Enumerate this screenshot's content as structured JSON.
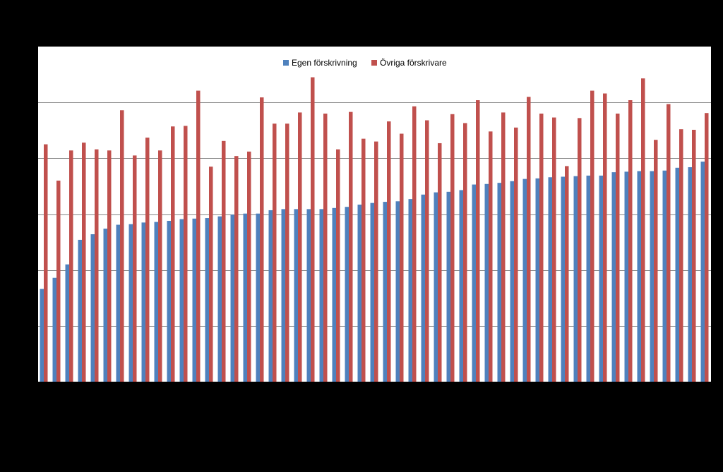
{
  "chart_data": {
    "type": "bar",
    "title": "",
    "xlabel": "",
    "ylabel": "",
    "ylim": [
      0,
      6
    ],
    "y_gridlines": [
      1,
      2,
      3,
      4,
      5
    ],
    "legend_position": "top-center",
    "colors": {
      "background": "#000000",
      "plot_area": "#ffffff",
      "gridline": "#868686",
      "axis": "#000000"
    },
    "series": [
      {
        "name": "Egen förskrivning",
        "color": "#4f81bd",
        "values": [
          1.66,
          1.86,
          2.1,
          2.54,
          2.64,
          2.74,
          2.81,
          2.82,
          2.85,
          2.86,
          2.88,
          2.91,
          2.92,
          2.93,
          2.96,
          2.99,
          3.01,
          3.01,
          3.07,
          3.09,
          3.09,
          3.09,
          3.09,
          3.11,
          3.13,
          3.17,
          3.2,
          3.22,
          3.23,
          3.27,
          3.35,
          3.39,
          3.4,
          3.43,
          3.53,
          3.54,
          3.56,
          3.59,
          3.63,
          3.64,
          3.66,
          3.67,
          3.68,
          3.69,
          3.69,
          3.75,
          3.76,
          3.77,
          3.77,
          3.78,
          3.83,
          3.84,
          3.94
        ]
      },
      {
        "name": "Övriga förskrivare",
        "color": "#c0504d",
        "values": [
          4.25,
          3.6,
          4.14,
          4.28,
          4.16,
          4.14,
          4.86,
          4.05,
          4.37,
          4.14,
          4.57,
          4.58,
          5.21,
          3.85,
          4.31,
          4.04,
          4.12,
          5.09,
          4.62,
          4.62,
          4.82,
          5.45,
          4.8,
          4.16,
          4.83,
          4.35,
          4.3,
          4.66,
          4.44,
          4.93,
          4.68,
          4.27,
          4.79,
          4.63,
          5.04,
          4.48,
          4.82,
          4.55,
          5.1,
          4.8,
          4.73,
          3.86,
          4.72,
          5.21,
          5.16,
          4.8,
          5.04,
          5.43,
          4.33,
          4.97,
          4.52,
          4.51,
          4.81
        ]
      }
    ]
  }
}
